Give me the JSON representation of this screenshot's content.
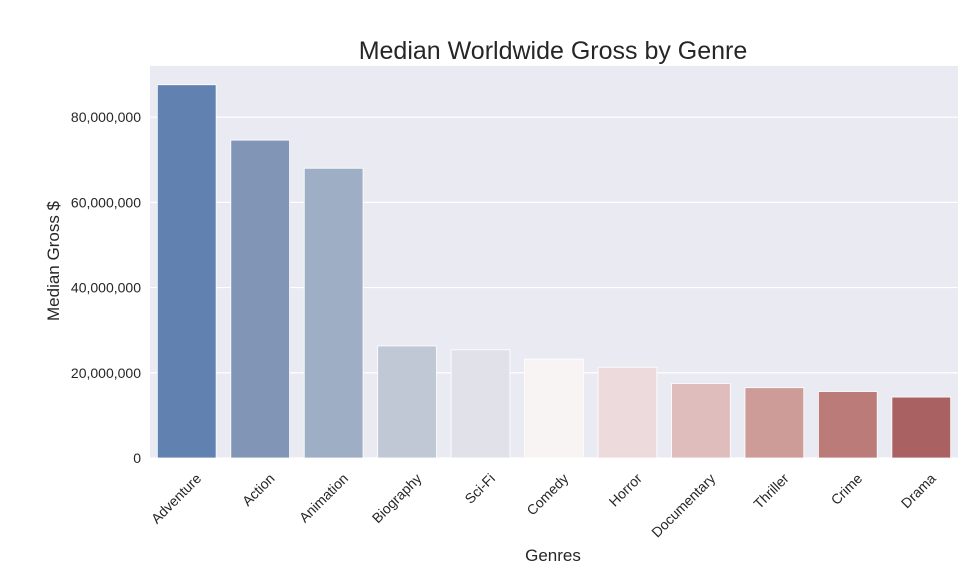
{
  "chart_data": {
    "type": "bar",
    "title": "Median Worldwide Gross by Genre",
    "xlabel": "Genres",
    "ylabel": "Median Gross $",
    "categories": [
      "Adventure",
      "Action",
      "Animation",
      "Biography",
      "Sci-Fi",
      "Comedy",
      "Horror",
      "Documentary",
      "Thriller",
      "Crime",
      "Drama"
    ],
    "values": [
      87600000,
      74600000,
      68000000,
      26300000,
      25400000,
      23200000,
      21300000,
      17500000,
      16500000,
      15600000,
      14300000
    ],
    "yticks": [
      0,
      20000000,
      40000000,
      60000000,
      80000000
    ],
    "ytick_labels": [
      "0",
      "20,000,000",
      "40,000,000",
      "60,000,000",
      "80,000,000"
    ],
    "ylim": [
      0,
      92000000
    ],
    "grid": true,
    "colors": [
      "#6181b1",
      "#8196b7",
      "#9eaec4",
      "#c0c7d5",
      "#e1e2e9",
      "#f8f4f4",
      "#ecdadc",
      "#dfbdbc",
      "#cd9c99",
      "#bb7b79",
      "#aa6161"
    ],
    "background": "#eaeaf2"
  }
}
